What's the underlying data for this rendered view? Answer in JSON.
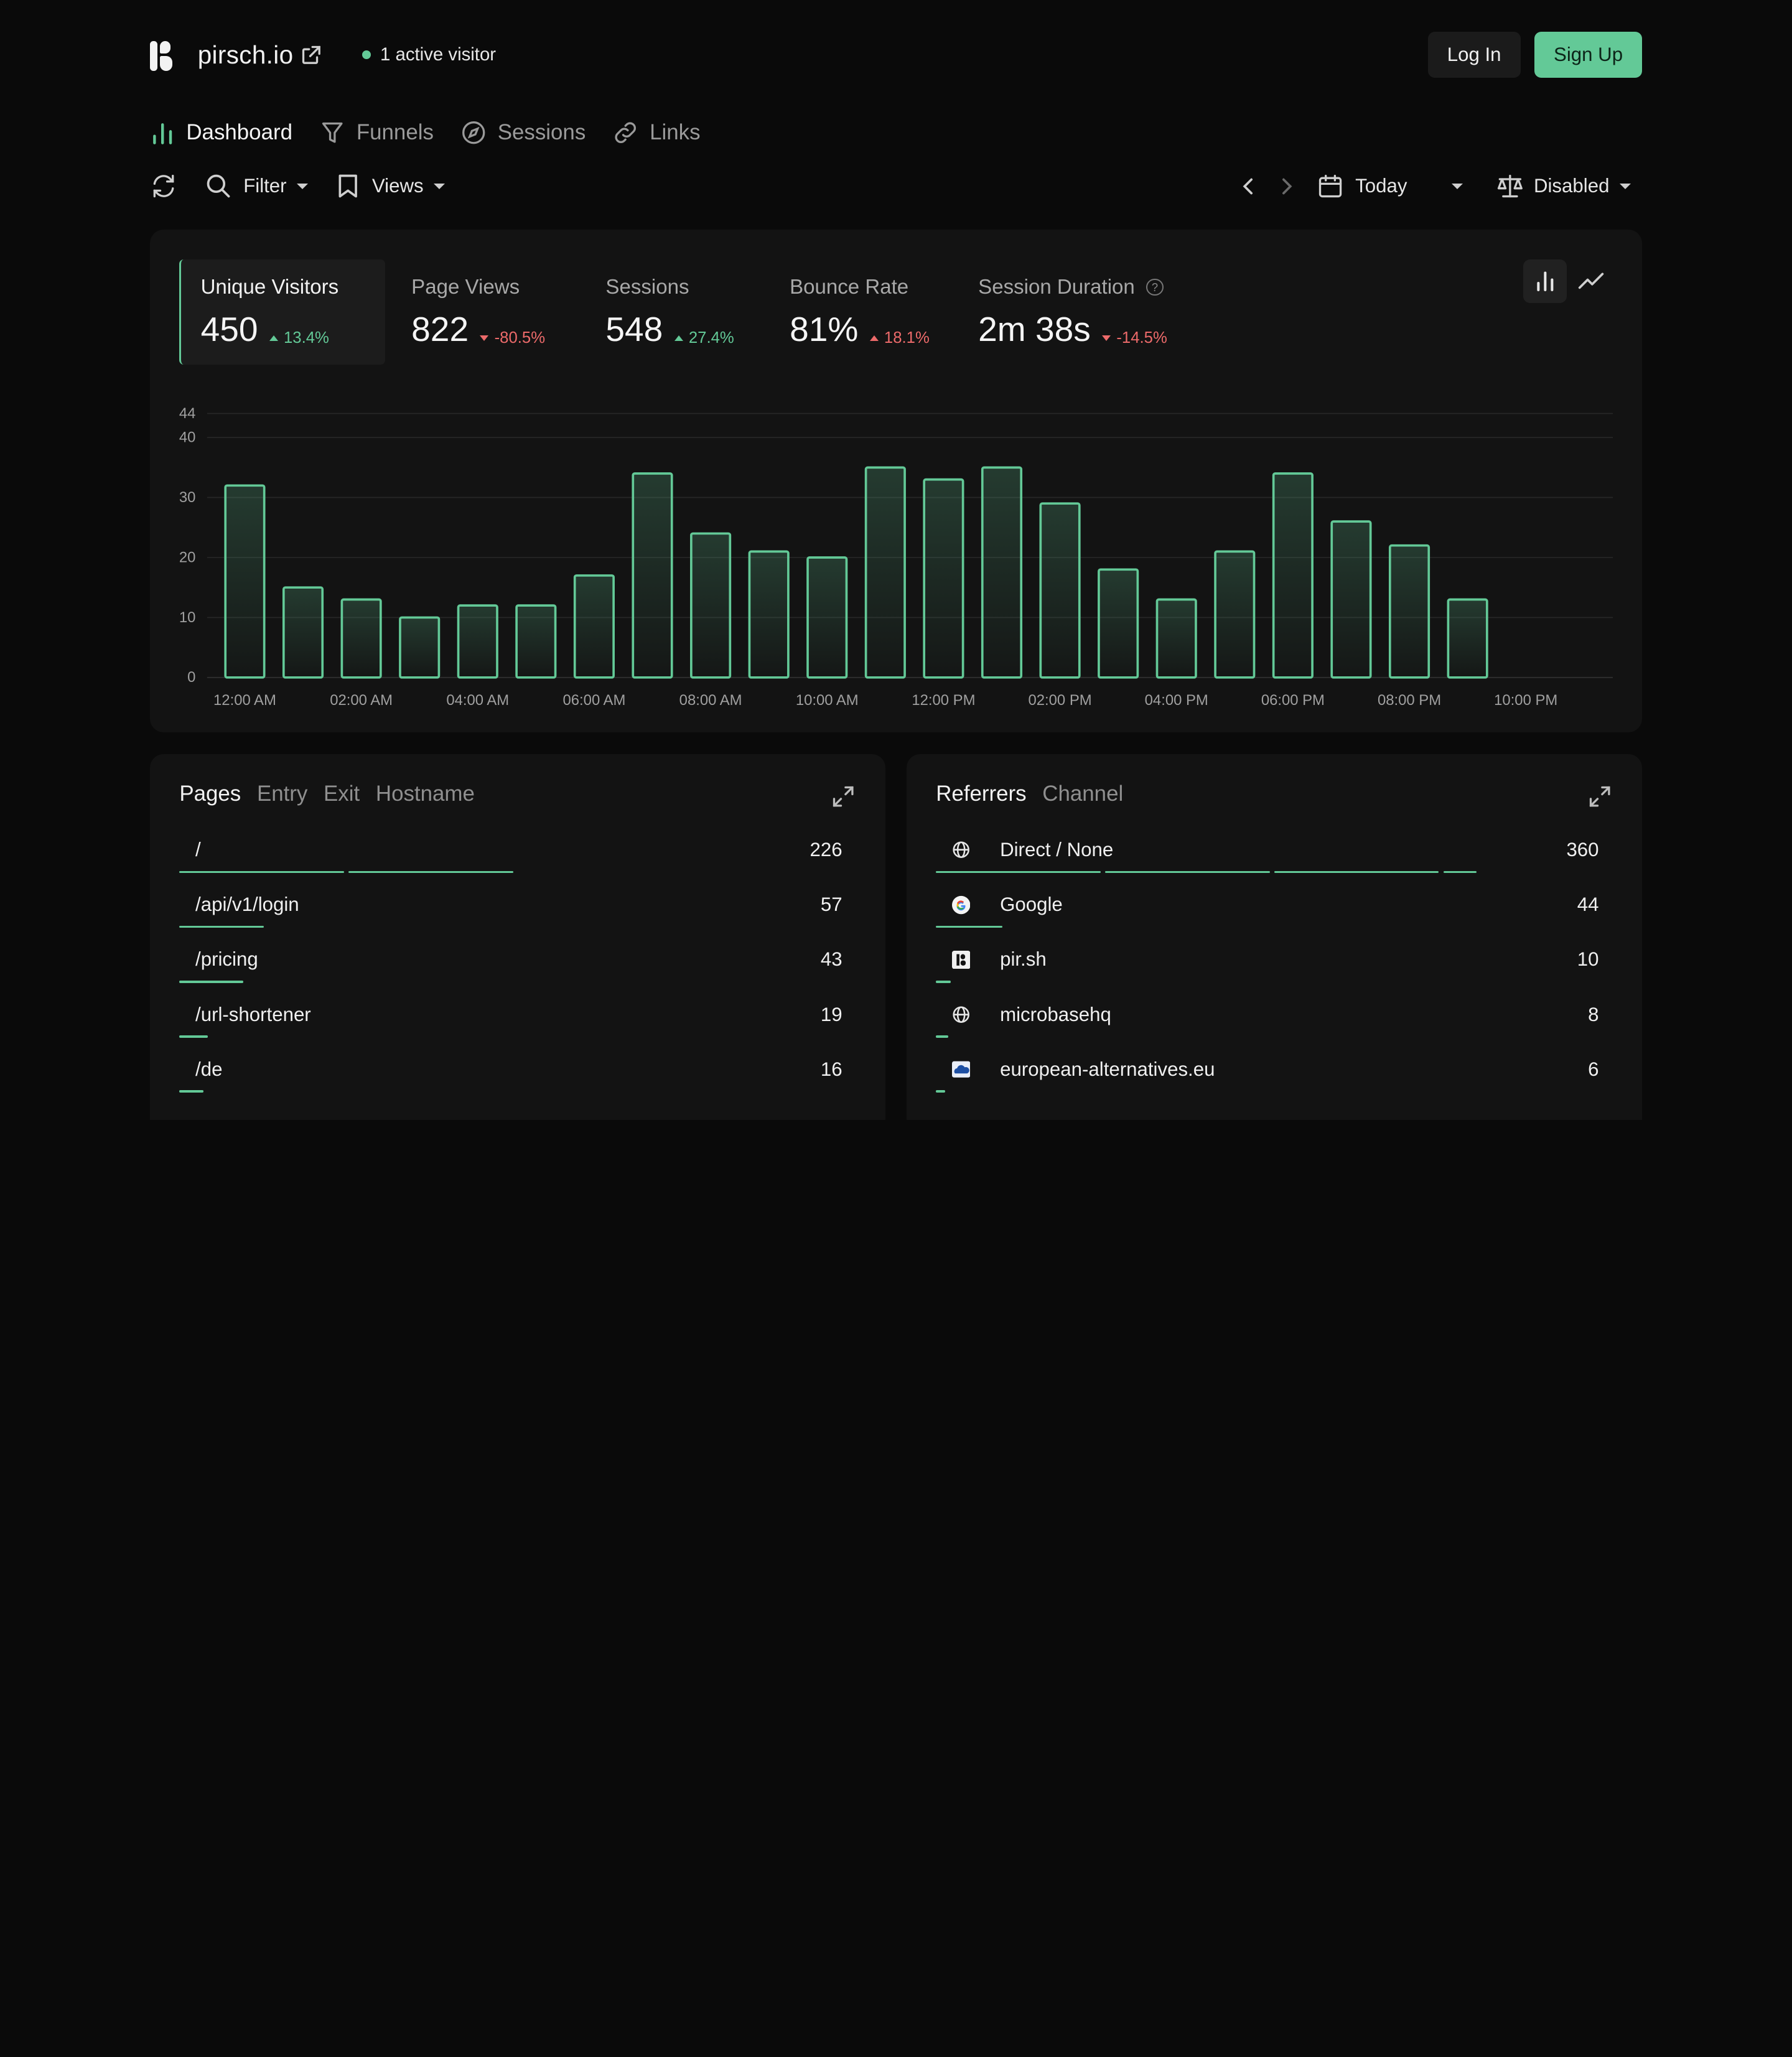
{
  "header": {
    "brand": "pirsch.io",
    "active_visitors": "1 active visitor",
    "login": "Log In",
    "signup": "Sign Up"
  },
  "nav": {
    "tabs": [
      {
        "label": "Dashboard",
        "icon": "bar-chart-icon",
        "active": true
      },
      {
        "label": "Funnels",
        "icon": "funnel-icon"
      },
      {
        "label": "Sessions",
        "icon": "compass-icon"
      },
      {
        "label": "Links",
        "icon": "link-icon"
      }
    ]
  },
  "toolbar": {
    "filter": "Filter",
    "views": "Views",
    "period": "Today",
    "compare": "Disabled"
  },
  "metrics": [
    {
      "label": "Unique Visitors",
      "value": "450",
      "delta": "13.4%",
      "direction": "up",
      "selected": true
    },
    {
      "label": "Page Views",
      "value": "822",
      "delta": "-80.5%",
      "direction": "down"
    },
    {
      "label": "Sessions",
      "value": "548",
      "delta": "27.4%",
      "direction": "up"
    },
    {
      "label": "Bounce Rate",
      "value": "81%",
      "delta": "18.1%",
      "direction": "up-bad"
    },
    {
      "label": "Session Duration",
      "value": "2m 38s",
      "delta": "-14.5%",
      "direction": "down",
      "help": "?"
    }
  ],
  "chart_data": {
    "type": "bar",
    "categories": [
      "12:00 AM",
      "01:00 AM",
      "02:00 AM",
      "03:00 AM",
      "04:00 AM",
      "05:00 AM",
      "06:00 AM",
      "07:00 AM",
      "08:00 AM",
      "09:00 AM",
      "10:00 AM",
      "11:00 AM",
      "12:00 PM",
      "01:00 PM",
      "02:00 PM",
      "03:00 PM",
      "04:00 PM",
      "05:00 PM",
      "06:00 PM",
      "07:00 PM",
      "08:00 PM",
      "09:00 PM",
      "10:00 PM",
      "11:00 PM"
    ],
    "values": [
      32,
      15,
      13,
      10,
      12,
      12,
      17,
      34,
      24,
      21,
      20,
      35,
      33,
      35,
      29,
      18,
      13,
      21,
      34,
      26,
      22,
      13,
      null,
      null
    ],
    "x_tick_labels": [
      "12:00 AM",
      "02:00 AM",
      "04:00 AM",
      "06:00 AM",
      "08:00 AM",
      "10:00 AM",
      "12:00 PM",
      "02:00 PM",
      "04:00 PM",
      "06:00 PM",
      "08:00 PM",
      "10:00 PM"
    ],
    "y_ticks": [
      0,
      10,
      20,
      30,
      40,
      44
    ],
    "ylim": [
      0,
      44
    ],
    "grid": true,
    "colors": {
      "bar": "#63c997"
    }
  },
  "pages_panel": {
    "tabs": [
      "Pages",
      "Entry",
      "Exit",
      "Hostname"
    ],
    "rows": [
      {
        "label": "/",
        "count": "226",
        "value": 226
      },
      {
        "label": "/api/v1/login",
        "count": "57",
        "value": 57
      },
      {
        "label": "/pricing",
        "count": "43",
        "value": 43
      },
      {
        "label": "/url-shortener",
        "count": "19",
        "value": 19
      },
      {
        "label": "/de",
        "count": "16",
        "value": 16
      }
    ]
  },
  "referrers_panel": {
    "tabs": [
      "Referrers",
      "Channel"
    ],
    "rows": [
      {
        "label": "Direct / None",
        "count": "360",
        "value": 360,
        "icon": "globe-icon"
      },
      {
        "label": "Google",
        "count": "44",
        "value": 44,
        "icon": "google-icon"
      },
      {
        "label": "pir.sh",
        "count": "10",
        "value": 10,
        "icon": "pirsch-icon"
      },
      {
        "label": "microbasehq",
        "count": "8",
        "value": 8,
        "icon": "globe-icon"
      },
      {
        "label": "european-alternatives.eu",
        "count": "6",
        "value": 6,
        "icon": "cloud-icon"
      }
    ]
  },
  "colors": {
    "accent": "#63c997",
    "negative": "#ec6a6a",
    "background": "#0a0a0a",
    "card": "#131313"
  }
}
